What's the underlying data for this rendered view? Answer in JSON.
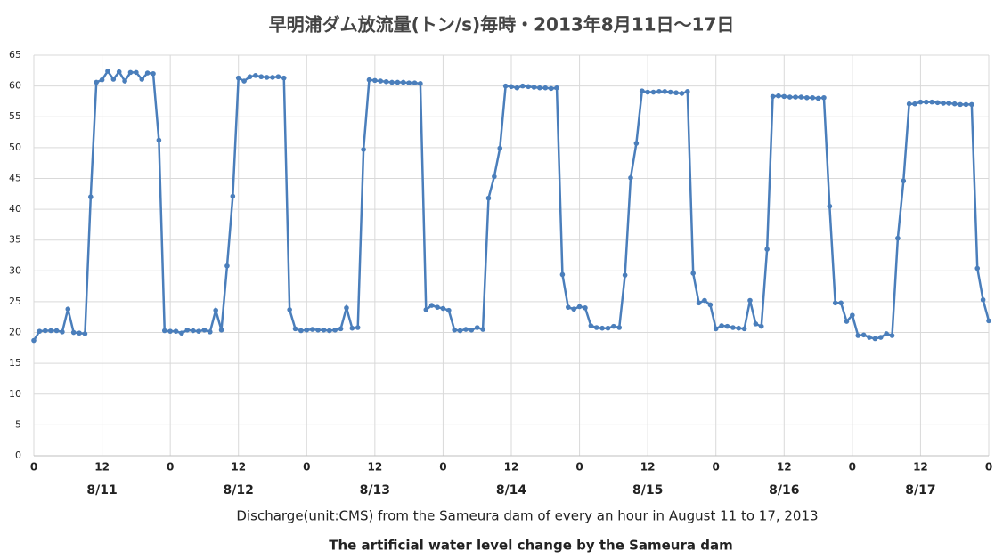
{
  "chart_data": {
    "type": "line",
    "title": "早明浦ダム放流量(トン/s)毎時・2013年8月11日～17日",
    "x_label": "Discharge(unit:CMS) from the Sameura dam of every an hour in August 11 to 17, 2013",
    "caption": "The artificial water level change by the Sameura dam",
    "day_labels": [
      "8/11",
      "8/12",
      "8/13",
      "8/14",
      "8/15",
      "8/16",
      "8/17"
    ],
    "x": [
      0,
      1,
      2,
      3,
      4,
      5,
      6,
      7,
      8,
      9,
      10,
      11,
      12,
      13,
      14,
      15,
      16,
      17,
      18,
      19,
      20,
      21,
      22,
      23,
      24,
      25,
      26,
      27,
      28,
      29,
      30,
      31,
      32,
      33,
      34,
      35,
      36,
      37,
      38,
      39,
      40,
      41,
      42,
      43,
      44,
      45,
      46,
      47,
      48,
      49,
      50,
      51,
      52,
      53,
      54,
      55,
      56,
      57,
      58,
      59,
      60,
      61,
      62,
      63,
      64,
      65,
      66,
      67,
      68,
      69,
      70,
      71,
      72,
      73,
      74,
      75,
      76,
      77,
      78,
      79,
      80,
      81,
      82,
      83,
      84,
      85,
      86,
      87,
      88,
      89,
      90,
      91,
      92,
      93,
      94,
      95,
      96,
      97,
      98,
      99,
      100,
      101,
      102,
      103,
      104,
      105,
      106,
      107,
      108,
      109,
      110,
      111,
      112,
      113,
      114,
      115,
      116,
      117,
      118,
      119,
      120,
      121,
      122,
      123,
      124,
      125,
      126,
      127,
      128,
      129,
      130,
      131,
      132,
      133,
      134,
      135,
      136,
      137,
      138,
      139,
      140,
      141,
      142,
      143,
      144,
      145,
      146,
      147,
      148,
      149,
      150,
      151,
      152,
      153,
      154,
      155,
      156,
      157,
      158,
      159,
      160,
      161,
      162,
      163,
      164,
      165,
      166,
      167,
      168
    ],
    "series": [
      {
        "color": "#4a7ebb",
        "values": [
          18.7,
          20.2,
          20.3,
          20.3,
          20.3,
          20.1,
          23.8,
          20.0,
          19.9,
          19.8,
          42.0,
          60.6,
          61.0,
          62.4,
          61.1,
          62.3,
          60.8,
          62.2,
          62.2,
          61.1,
          62.1,
          62.0,
          51.2,
          20.3,
          20.2,
          20.2,
          19.9,
          20.4,
          20.3,
          20.2,
          20.4,
          20.1,
          23.6,
          20.4,
          30.8,
          42.1,
          61.3,
          60.8,
          61.5,
          61.7,
          61.5,
          61.4,
          61.4,
          61.5,
          61.3,
          23.7,
          20.6,
          20.3,
          20.4,
          20.5,
          20.4,
          20.4,
          20.3,
          20.4,
          20.6,
          24.0,
          20.7,
          20.8,
          49.7,
          61.0,
          60.9,
          60.8,
          60.7,
          60.6,
          60.6,
          60.6,
          60.5,
          60.5,
          60.4,
          23.7,
          24.4,
          24.1,
          23.9,
          23.6,
          20.4,
          20.3,
          20.5,
          20.4,
          20.8,
          20.5,
          41.8,
          45.3,
          49.9,
          60.0,
          59.9,
          59.7,
          60.0,
          59.9,
          59.8,
          59.7,
          59.7,
          59.6,
          59.7,
          29.4,
          24.1,
          23.8,
          24.2,
          24.0,
          21.1,
          20.8,
          20.7,
          20.7,
          21.0,
          20.8,
          29.3,
          45.1,
          50.7,
          59.2,
          59.0,
          59.0,
          59.1,
          59.1,
          59.0,
          58.9,
          58.8,
          59.1,
          29.6,
          24.8,
          25.2,
          24.5,
          20.6,
          21.1,
          21.0,
          20.8,
          20.7,
          20.6,
          25.2,
          21.4,
          21.0,
          33.5,
          58.3,
          58.4,
          58.3,
          58.2,
          58.2,
          58.2,
          58.1,
          58.1,
          58.0,
          58.1,
          40.5,
          24.8,
          24.8,
          21.8,
          22.8,
          19.5,
          19.6,
          19.2,
          19.0,
          19.2,
          19.8,
          19.5,
          35.3,
          44.6,
          57.1,
          57.1,
          57.4,
          57.4,
          57.4,
          57.3,
          57.2,
          57.2,
          57.1,
          57.0,
          57.0,
          57.0,
          30.4,
          25.3,
          21.9
        ]
      }
    ],
    "xlim": [
      0,
      168
    ],
    "xticks": [
      0,
      12,
      {
        "value": 24,
        "label": "0"
      },
      {
        "value": 36,
        "label": "12"
      },
      {
        "value": 48,
        "label": "0"
      },
      {
        "value": 60,
        "label": "12"
      },
      {
        "value": 72,
        "label": "0"
      },
      {
        "value": 84,
        "label": "12"
      },
      {
        "value": 96,
        "label": "0"
      },
      {
        "value": 108,
        "label": "12"
      },
      {
        "value": 120,
        "label": "0"
      },
      {
        "value": 132,
        "label": "12"
      },
      {
        "value": 144,
        "label": "0"
      },
      {
        "value": 156,
        "label": "12"
      },
      {
        "value": 168,
        "label": "0"
      }
    ],
    "ylim": [
      0,
      65
    ],
    "yticks": [
      0,
      5,
      10,
      15,
      20,
      25,
      30,
      35,
      40,
      45,
      50,
      55,
      60,
      65
    ],
    "grid": true
  }
}
